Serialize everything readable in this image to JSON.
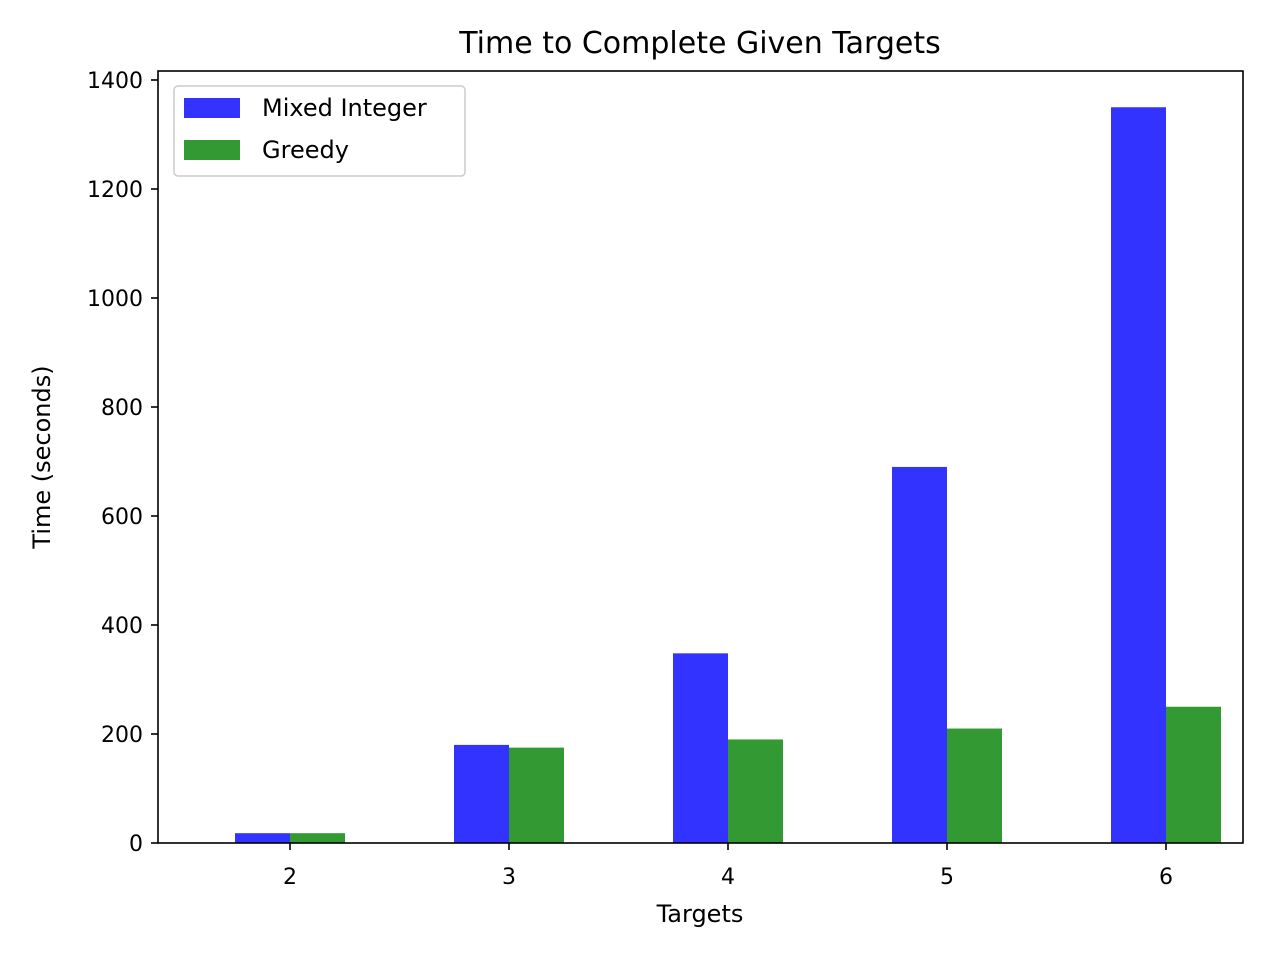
{
  "chart_data": {
    "type": "bar",
    "title": "Time to Complete Given Targets",
    "xlabel": "Targets",
    "ylabel": "Time (seconds)",
    "categories": [
      "2",
      "3",
      "4",
      "5",
      "6"
    ],
    "series": [
      {
        "name": "Mixed Integer",
        "color": "#3333ff",
        "values": [
          18,
          180,
          348,
          690,
          1350
        ]
      },
      {
        "name": "Greedy",
        "color": "#339933",
        "values": [
          18,
          175,
          190,
          210,
          250
        ]
      }
    ],
    "ylim": [
      0,
      1400
    ],
    "yticks": [
      0,
      200,
      400,
      600,
      800,
      1000,
      1200,
      1400
    ],
    "grid": false,
    "legend_position": "top-left"
  }
}
